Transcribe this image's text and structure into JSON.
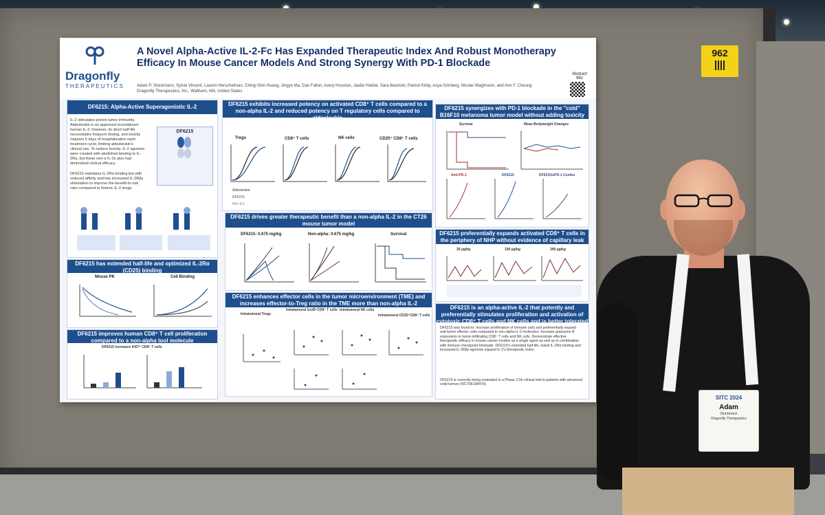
{
  "poster": {
    "logo_name": "Dragonfly",
    "logo_sub": "THERAPEUTICS",
    "title": "A Novel Alpha-Active IL-2-Fc Has Expanded Therapeutic Index And Robust Monotherapy Efficacy In Mouse Cancer Models And Strong Synergy With PD-1 Blockade",
    "authors": "Adam P. Stockmann, Sylvia Vincent, Lauren Herschelman, Ching-Shin Huang, Jingye Ma, Dan Fallon, Avery Houston, Jaafar Haidar, Sara Basinski, Patrick Kirby, Asya Grinberg, Nicolai Wagtmann, and Ann F. Cheung",
    "affiliation": "Dragonfly Therapeutics, Inc., Waltham, MA, United States",
    "abstract_label": "Abstract",
    "abstract_num": "962",
    "panels": {
      "p1_title": "DF6215: Alpha-Active Superagonistic IL-2",
      "p1_text": "IL-2 stimulates potent tumor immunity. Aldesleukin is an approved recombinant human IL-2; however, its short half-life necessitates frequent dosing, and toxicity requires 5 days of hospitalization each treatment cycle, limiting aldesleukin's clinical use. To reduce toxicity, IL-2 agonists were created with abolished binding to IL-2Rα, but these non-α IL-2s also had diminished clinical efficacy.",
      "p1_text2": "DF6215 maintains IL-2Rα binding but with reduced affinity and has increased IL-2Rβγ stimulation to improve the benefit-to-risk ratio compared to historic IL-2 drugs",
      "p1_box": "DF6215",
      "p2_title": "DF6215 has extended half-life and optimized IL-2Rα (CD25) binding",
      "p2_a": "Mouse PK",
      "p2_b": "Cell Binding",
      "p3_title": "DF6215 improves human CD8⁺ T cell proliferation compared to a non-alpha tool molecule",
      "p3_sub": "DF6215 increases Ki67⁺ CD8⁺ T cells",
      "p4_title": "DF6215 exhibits increased potency on activated CD8⁺ T cells compared to a non-alpha IL-2 and reduced potency on T regulatory cells compared to aldesleukin",
      "p4_labels": [
        "Tregs",
        "CD8⁺ T cells",
        "NK cells",
        "CD25⁺ CD8⁺ T cells"
      ],
      "p4_legend": [
        "Aldesleukin",
        "DF6215",
        "NFc-IL2"
      ],
      "p5_title": "DF6215 drives greater therapeutic benefit than a non-alpha IL-2 in the CT26 mouse tumor model",
      "p5_a": "DF6215: 0.675 mg/kg",
      "p5_b": "Non-alpha: 0.675 mg/kg",
      "p5_c": "Survival",
      "p6_title": "DF6215 enhances effector cells in the tumor microenvironment (TME) and increases effector-to-Treg ratio in the TME more than non-alpha IL-2",
      "p6_labels": [
        "Intratumoral Tregs",
        "Intratumoral GrzB⁺CD8⁺ T cells",
        "Intratumoral NK cells",
        "Intratumoral CD25⁺CD8⁺ T cells"
      ],
      "p7_title": "DF6215 synergizes with PD-1 blockade in the \"cold\" B16F10 melanoma tumor model without adding toxicity",
      "p7_a": "Survival",
      "p7_b": "Mean Bodyweight Changes",
      "p7_c": [
        "Anti-PD-1",
        "DF6215",
        "DF6215/αPD-1 Combo"
      ],
      "p8_title": "DF6215 preferentially expands activated CD8⁺ T cells in the periphery of NHP without evidence of capillary leak syndrome or cytokine release syndrome",
      "p8_doses": [
        "30 µg/kg",
        "100 µg/kg",
        "300 µg/kg"
      ],
      "p9_title": "DF6215 is an alpha-active IL-2 that potently and preferentially stimulates proliferation and activation of cytotoxic CD8⁺ T cells and NK cells and is better tolerated than aldesleukin",
      "p9_text": "DF6215 was found to: Increase proliferation of immune cells and preferentially expand anti-tumor effector cells compared to non-alpha IL-2 molecules. Increase granzyme B expression in tumor-infiltrating CD8⁺ T cells and NK cells. Demonstrate effective therapeutic efficacy in mouse cancer models as a single agent as well as in combination with immune checkpoint blockade. DF6215's extended half-life, tuned IL-2Rα binding and increased IL-2Rβγ agonism expand IL-2's therapeutic index.",
      "p9_text2": "DF6215 is currently being evaluated in a Phase 1/1b clinical trial in patients with advanced solid tumors (NCT06108479)."
    }
  },
  "booth_tag": "962",
  "badge": {
    "logo": "SITC 2024",
    "first_name": "Adam",
    "last_name": "Stockmann",
    "company": "Dragonfly Therapeutics"
  },
  "colors": {
    "poster_blue": "#1f4e8c",
    "tag_yellow": "#f3d21a",
    "lanyard_orange": "#e35a22"
  }
}
